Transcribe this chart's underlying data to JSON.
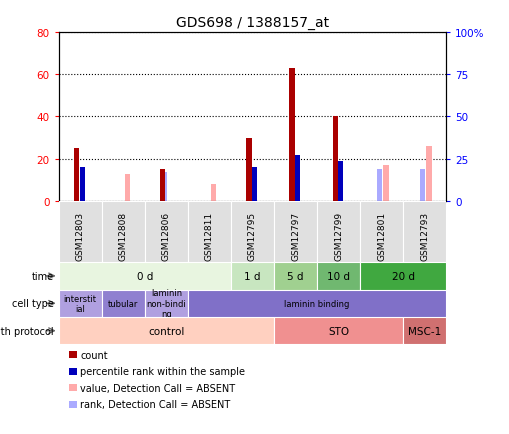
{
  "title": "GDS698 / 1388157_at",
  "samples": [
    "GSM12803",
    "GSM12808",
    "GSM12806",
    "GSM12811",
    "GSM12795",
    "GSM12797",
    "GSM12799",
    "GSM12801",
    "GSM12793"
  ],
  "count_values": [
    25,
    0,
    15,
    0,
    30,
    63,
    40,
    0,
    0
  ],
  "percentile_values": [
    20,
    0,
    0,
    0,
    20,
    27,
    24,
    0,
    0
  ],
  "absent_value_values": [
    0,
    13,
    0,
    8,
    0,
    0,
    0,
    17,
    26
  ],
  "absent_rank_values": [
    0,
    0,
    14,
    0,
    0,
    0,
    0,
    15,
    15
  ],
  "ylim_left": [
    0,
    80
  ],
  "ylim_right": [
    0,
    100
  ],
  "yticks_left": [
    0,
    20,
    40,
    60,
    80
  ],
  "yticks_right": [
    0,
    25,
    50,
    75,
    100
  ],
  "ytick_labels_right": [
    "0",
    "25",
    "50",
    "75",
    "100%"
  ],
  "time_row": {
    "groups": [
      {
        "label": "0 d",
        "start": 0,
        "end": 4,
        "color": "#e8f5e0"
      },
      {
        "label": "1 d",
        "start": 4,
        "end": 5,
        "color": "#c8e6c0"
      },
      {
        "label": "5 d",
        "start": 5,
        "end": 6,
        "color": "#a0d090"
      },
      {
        "label": "10 d",
        "start": 6,
        "end": 7,
        "color": "#70b870"
      },
      {
        "label": "20 d",
        "start": 7,
        "end": 9,
        "color": "#40a840"
      }
    ]
  },
  "cell_type_row": {
    "groups": [
      {
        "label": "interstit\nial",
        "start": 0,
        "end": 1,
        "color": "#b0a0e0"
      },
      {
        "label": "tubular",
        "start": 1,
        "end": 2,
        "color": "#9080d0"
      },
      {
        "label": "laminin\nnon-bindi\nng",
        "start": 2,
        "end": 3,
        "color": "#b0a0e0"
      },
      {
        "label": "laminin binding",
        "start": 3,
        "end": 9,
        "color": "#8070c8"
      }
    ]
  },
  "growth_protocol_row": {
    "groups": [
      {
        "label": "control",
        "start": 0,
        "end": 5,
        "color": "#ffd0c0"
      },
      {
        "label": "STO",
        "start": 5,
        "end": 8,
        "color": "#f09090"
      },
      {
        "label": "MSC-1",
        "start": 8,
        "end": 9,
        "color": "#d07070"
      }
    ]
  },
  "count_color": "#aa0000",
  "percentile_color": "#0000bb",
  "absent_value_color": "#ffaaaa",
  "absent_rank_color": "#aaaaff",
  "bg_color": "#ffffff",
  "plot_bg_color": "#ffffff",
  "legend_items": [
    {
      "color": "#aa0000",
      "label": "count"
    },
    {
      "color": "#0000bb",
      "label": "percentile rank within the sample"
    },
    {
      "color": "#ffaaaa",
      "label": "value, Detection Call = ABSENT"
    },
    {
      "color": "#aaaaff",
      "label": "rank, Detection Call = ABSENT"
    }
  ]
}
